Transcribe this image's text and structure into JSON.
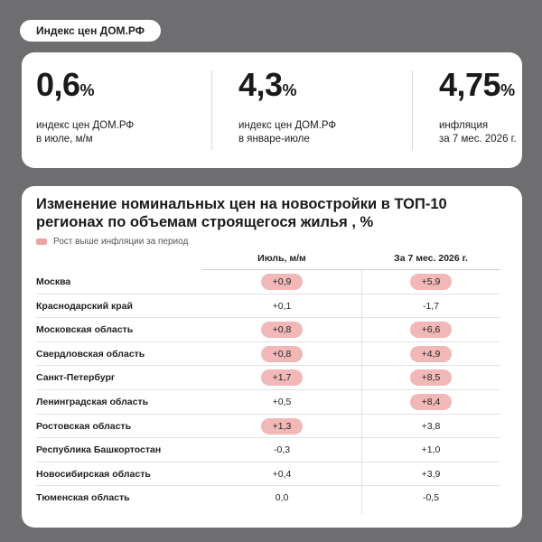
{
  "tag": "Индекс цен ДОМ.РФ",
  "stats": [
    {
      "value": "0,6",
      "unit": "%",
      "desc": [
        "индекс цен ДОМ.РФ",
        "в июле, м/м"
      ]
    },
    {
      "value": "4,3",
      "unit": "%",
      "desc": [
        "индекс цен ДОМ.РФ",
        "в январе-июле"
      ]
    },
    {
      "value": "4,75",
      "unit": "%",
      "desc": [
        "инфляция",
        "за 7 мес. 2026 г."
      ]
    }
  ],
  "table": {
    "title": "Изменение номинальных цен на новостройки в ТОП-10 регионах по объемам строящегося жилья , %",
    "legend": "Рост выше инфляции за период",
    "highlight_color": "#f2b8b8",
    "columns": [
      "Июль, м/м",
      "За 7 мес. 2026 г."
    ],
    "rows": [
      {
        "region": "Москва",
        "jul": "+0,9",
        "jul_hl": true,
        "ytd": "+5,9",
        "ytd_hl": true
      },
      {
        "region": "Краснодарский край",
        "jul": "+0,1",
        "jul_hl": false,
        "ytd": "-1,7",
        "ytd_hl": false
      },
      {
        "region": "Московская область",
        "jul": "+0,8",
        "jul_hl": true,
        "ytd": "+6,6",
        "ytd_hl": true
      },
      {
        "region": "Свердловская область",
        "jul": "+0,8",
        "jul_hl": true,
        "ytd": "+4,9",
        "ytd_hl": true
      },
      {
        "region": "Санкт-Петербург",
        "jul": "+1,7",
        "jul_hl": true,
        "ytd": "+8,5",
        "ytd_hl": true
      },
      {
        "region": "Ленинградская область",
        "jul": "+0,5",
        "jul_hl": false,
        "ytd": "+8,4",
        "ytd_hl": true
      },
      {
        "region": "Ростовская область",
        "jul": "+1,3",
        "jul_hl": true,
        "ytd": "+3,8",
        "ytd_hl": false
      },
      {
        "region": "Республика Башкортостан",
        "jul": "-0,3",
        "jul_hl": false,
        "ytd": "+1,0",
        "ytd_hl": false
      },
      {
        "region": "Новосибирская область",
        "jul": "+0,4",
        "jul_hl": false,
        "ytd": "+3,9",
        "ytd_hl": false
      },
      {
        "region": "Тюменская область",
        "jul": "0,0",
        "jul_hl": false,
        "ytd": "-0,5",
        "ytd_hl": false
      }
    ]
  }
}
